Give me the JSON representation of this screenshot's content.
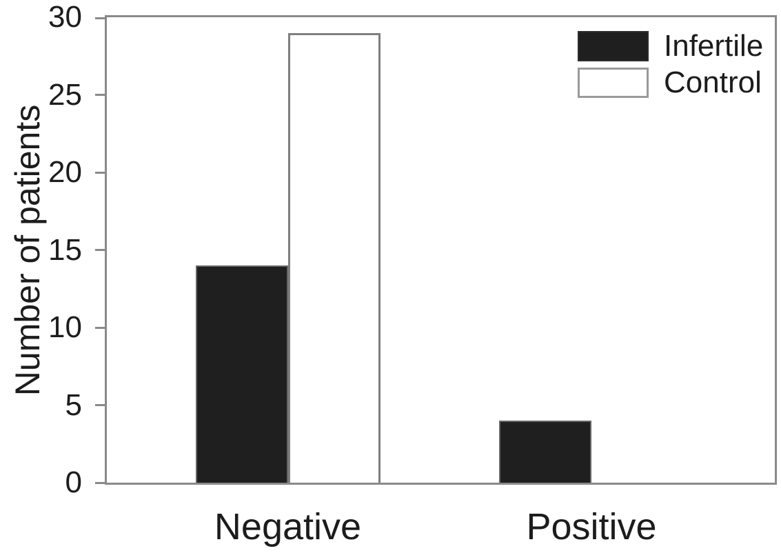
{
  "chart_data": {
    "type": "bar",
    "title": "",
    "categories": [
      "Negative",
      "Positive"
    ],
    "series": [
      {
        "name": "Infertile",
        "values": [
          14,
          4
        ],
        "fill": "#1f1f1f",
        "style": "dark"
      },
      {
        "name": "Control",
        "values": [
          29,
          0
        ],
        "fill": "#ffffff",
        "style": "light"
      }
    ],
    "xlabel": "",
    "ylabel": "Number of patients",
    "ylim": [
      0,
      30
    ],
    "yticks": [
      0,
      5,
      10,
      15,
      20,
      25,
      30
    ],
    "grid": false,
    "legend_position": "top-right"
  },
  "colors": {
    "infertile_bar": "#1f1f1f",
    "control_bar": "#ffffff",
    "axis_frame": "#8a8a8a",
    "text": "#1c1c1c",
    "background": "#ffffff"
  }
}
